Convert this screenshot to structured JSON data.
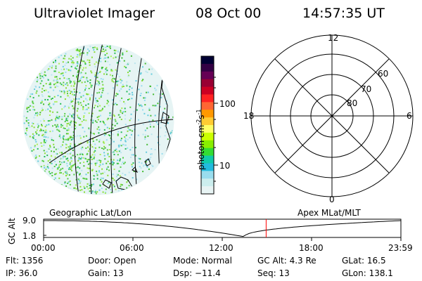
{
  "header": {
    "title": "Ultraviolet Imager",
    "date": "08 Oct 00",
    "time": "14:57:35 UT"
  },
  "colorbar": {
    "unit_label": "photon cm",
    "unit_sup1": "-2",
    "unit_mid": "s",
    "unit_sup2": "-1",
    "tick_100": "100",
    "tick_10": "10",
    "colors": [
      "#000033",
      "#330044",
      "#660055",
      "#990033",
      "#cc0022",
      "#ff2222",
      "#ff6633",
      "#ff9900",
      "#ffcc33",
      "#ffff66",
      "#ccff00",
      "#88ee00",
      "#33dd33",
      "#11ccaa",
      "#22bbdd",
      "#99ddee",
      "#cceeee",
      "#e8f4f4"
    ]
  },
  "left_map": {
    "label": "Geographic Lat/Lon"
  },
  "polar": {
    "label": "Apex MLat/MLT",
    "mlt_12": "12",
    "mlt_18": "18",
    "mlt_6": "6",
    "mlt_0": "0",
    "lat_60": "60",
    "lat_70": "70",
    "lat_80": "80"
  },
  "timeline": {
    "ylabel": "GC Alt",
    "ytick_top": "9.0",
    "ytick_bottom": "1.8",
    "xticks": [
      "00:00",
      "06:00",
      "12:00",
      "18:00",
      "23:59"
    ],
    "marker_time": "14:57",
    "line_color": "#000000",
    "marker_color": "#ff0000"
  },
  "footer": {
    "flt": "Flt: 1356",
    "ip": "IP: 36.0",
    "door": "Door: Open",
    "gain": "Gain: 13",
    "mode": "Mode: Normal",
    "dsp": "Dsp:  −11.4",
    "gcalt": "GC Alt: 4.3 Re",
    "seq": "Seq: 13",
    "glat": "GLat:  16.5",
    "glon": "GLon: 138.1"
  }
}
